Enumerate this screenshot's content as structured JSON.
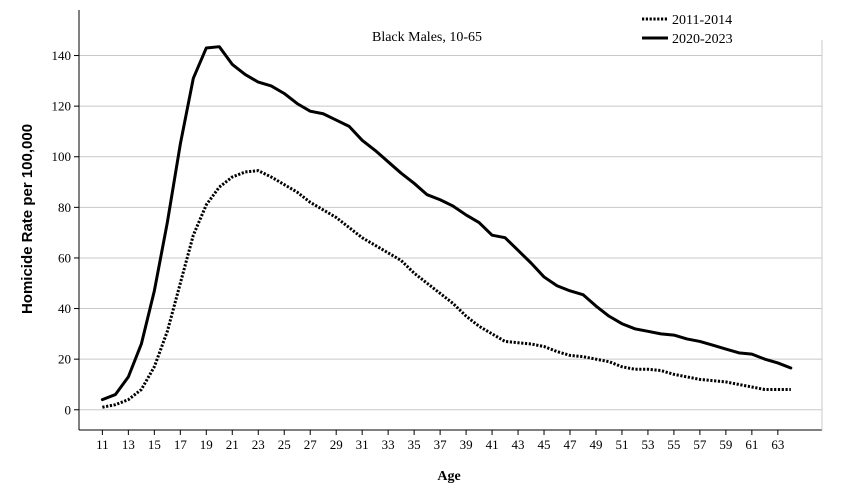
{
  "chart_data": {
    "type": "line",
    "annotation": "Black Males, 10-65",
    "xlabel": "Age",
    "ylabel": "Homicide Rate per 100,000",
    "xlim": [
      9.2,
      66.4
    ],
    "ylim": [
      -8,
      158
    ],
    "x_ticks": [
      "11",
      "13",
      "15",
      "17",
      "19",
      "21",
      "23",
      "25",
      "27",
      "29",
      "31",
      "33",
      "35",
      "37",
      "39",
      "41",
      "43",
      "45",
      "47",
      "49",
      "51",
      "53",
      "55",
      "57",
      "59",
      "61",
      "63"
    ],
    "y_ticks": [
      "0",
      "20",
      "40",
      "60",
      "80",
      "100",
      "120",
      "140"
    ],
    "grid": "horizontal",
    "legend_position": "top-right",
    "x": [
      11,
      12,
      13,
      14,
      15,
      16,
      17,
      18,
      19,
      20,
      21,
      22,
      23,
      24,
      25,
      26,
      27,
      28,
      29,
      30,
      31,
      32,
      33,
      34,
      35,
      36,
      37,
      38,
      39,
      40,
      41,
      42,
      43,
      44,
      45,
      46,
      47,
      48,
      49,
      50,
      51,
      52,
      53,
      54,
      55,
      56,
      57,
      58,
      59,
      60,
      61,
      62,
      63,
      64
    ],
    "series": [
      {
        "name": "2011-2014",
        "style": "dotted",
        "color": "#000000",
        "values": [
          1,
          2,
          4,
          8,
          17,
          31,
          50,
          69,
          81,
          88,
          92,
          94,
          94.5,
          92,
          89,
          86,
          82,
          79,
          76,
          72,
          68,
          65,
          62,
          59,
          54,
          50,
          46,
          42,
          37,
          33,
          30,
          27,
          26.5,
          26,
          25,
          23,
          21.5,
          21,
          20,
          19,
          17,
          16,
          16,
          15.5,
          14,
          13,
          12,
          11.5,
          11,
          10,
          9,
          8,
          8,
          8
        ]
      },
      {
        "name": "2020-2023",
        "style": "solid",
        "color": "#000000",
        "values": [
          4,
          6,
          13,
          26,
          47,
          74,
          105,
          131,
          143,
          143.5,
          136.5,
          132.5,
          129.5,
          128,
          125,
          121,
          118,
          117,
          114.5,
          112,
          106.5,
          102.5,
          98,
          93.5,
          89.5,
          85,
          83,
          80.5,
          77,
          74,
          69,
          68,
          63,
          58,
          52.5,
          49,
          47,
          45.5,
          41,
          37,
          34,
          32,
          31,
          30,
          29.5,
          28,
          27,
          25.5,
          24,
          22.5,
          22,
          20,
          18.5,
          16.5
        ]
      }
    ]
  }
}
